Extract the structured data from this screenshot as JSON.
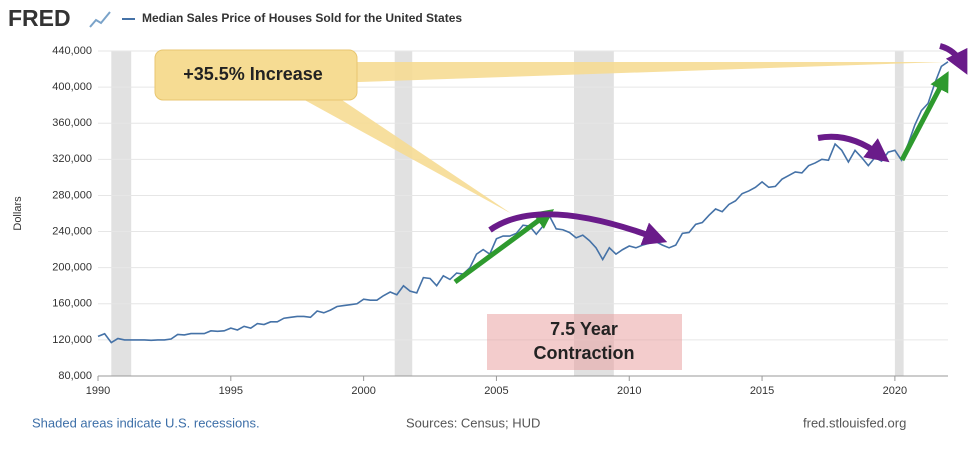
{
  "header": {
    "logo": "FRED"
  },
  "chart_data": {
    "type": "line",
    "y_label": "Dollars",
    "x": [
      1990,
      1990.25,
      1990.5,
      1990.75,
      1991,
      1991.25,
      1991.5,
      1991.75,
      1992,
      1992.25,
      1992.5,
      1992.75,
      1993,
      1993.25,
      1993.5,
      1993.75,
      1994,
      1994.25,
      1994.5,
      1994.75,
      1995,
      1995.25,
      1995.5,
      1995.75,
      1996,
      1996.25,
      1996.5,
      1996.75,
      1997,
      1997.25,
      1997.5,
      1997.75,
      1998,
      1998.25,
      1998.5,
      1998.75,
      1999,
      1999.25,
      1999.5,
      1999.75,
      2000,
      2000.25,
      2000.5,
      2000.75,
      2001,
      2001.25,
      2001.5,
      2001.75,
      2002,
      2002.25,
      2002.5,
      2002.75,
      2003,
      2003.25,
      2003.5,
      2003.75,
      2004,
      2004.25,
      2004.5,
      2004.75,
      2005,
      2005.25,
      2005.5,
      2005.75,
      2006,
      2006.25,
      2006.5,
      2006.75,
      2007,
      2007.25,
      2007.5,
      2007.75,
      2008,
      2008.25,
      2008.5,
      2008.75,
      2009,
      2009.25,
      2009.5,
      2009.75,
      2010,
      2010.25,
      2010.5,
      2010.75,
      2011,
      2011.25,
      2011.5,
      2011.75,
      2012,
      2012.25,
      2012.5,
      2012.75,
      2013,
      2013.25,
      2013.5,
      2013.75,
      2014,
      2014.25,
      2014.5,
      2014.75,
      2015,
      2015.25,
      2015.5,
      2015.75,
      2016,
      2016.25,
      2016.5,
      2016.75,
      2017,
      2017.25,
      2017.5,
      2017.75,
      2018,
      2018.25,
      2018.5,
      2018.75,
      2019,
      2019.25,
      2019.5,
      2019.75,
      2020,
      2020.25,
      2020.5,
      2020.75,
      2021,
      2021.25,
      2021.5,
      2021.75,
      2022
    ],
    "series": [
      {
        "name": "Median Sales Price of Houses Sold for the United States",
        "color": "#4572a7",
        "values": [
          123900,
          126800,
          117000,
          121500,
          120000,
          119900,
          120000,
          120000,
          119500,
          120000,
          120000,
          121000,
          126000,
          125500,
          127000,
          127000,
          127000,
          130000,
          129500,
          130000,
          133000,
          131000,
          135000,
          133000,
          138000,
          137000,
          140000,
          140000,
          144000,
          145000,
          146000,
          146000,
          145000,
          152000,
          150000,
          153000,
          157000,
          158000,
          159000,
          160000,
          165000,
          164000,
          164000,
          169000,
          173000,
          170000,
          180000,
          174000,
          172000,
          189000,
          188000,
          180000,
          191000,
          187000,
          194000,
          193000,
          200000,
          215000,
          220000,
          215000,
          232000,
          235000,
          235000,
          238000,
          247000,
          246000,
          237000,
          246000,
          257000,
          243000,
          242000,
          239000,
          233000,
          236000,
          230000,
          222000,
          209000,
          222000,
          215000,
          220000,
          224000,
          222000,
          225000,
          227000,
          229000,
          225000,
          222000,
          225000,
          238000,
          239000,
          248000,
          250000,
          258000,
          265000,
          262000,
          270000,
          274000,
          282000,
          285000,
          289000,
          295000,
          289000,
          290000,
          298000,
          302000,
          306000,
          305000,
          313000,
          316000,
          320000,
          319000,
          337000,
          330000,
          317000,
          330000,
          322000,
          313000,
          322000,
          318000,
          328000,
          330000,
          319000,
          337000,
          358000,
          374000,
          382000,
          404000,
          423000,
          428000
        ]
      }
    ],
    "recessions": [
      [
        1990.5,
        1991.25
      ],
      [
        2001.17,
        2001.83
      ],
      [
        2007.92,
        2009.42
      ],
      [
        2020,
        2020.33
      ]
    ],
    "xlim": [
      1990,
      2022
    ],
    "xticks": [
      1990,
      1995,
      2000,
      2005,
      2010,
      2015,
      2020
    ],
    "ylim": [
      80000,
      440000
    ],
    "yticks": [
      {
        "value": 80000,
        "label": "80,000"
      },
      {
        "value": 120000,
        "label": "120,000"
      },
      {
        "value": 160000,
        "label": "160,000"
      },
      {
        "value": 200000,
        "label": "200,000"
      },
      {
        "value": 240000,
        "label": "240,000"
      },
      {
        "value": 280000,
        "label": "280,000"
      },
      {
        "value": 320000,
        "label": "320,000"
      },
      {
        "value": 360000,
        "label": "360,000"
      },
      {
        "value": 400000,
        "label": "400,000"
      },
      {
        "value": 440000,
        "label": "440,000"
      }
    ],
    "grid": true,
    "annotations": [
      {
        "text": "+35.5% Increase"
      },
      {
        "lines": [
          "7.5 Year",
          "Contraction"
        ]
      }
    ]
  },
  "footer": {
    "note": "Shaded areas indicate U.S. recessions.",
    "sources": "Sources: Census; HUD",
    "site": "fred.stlouisfed.org"
  }
}
